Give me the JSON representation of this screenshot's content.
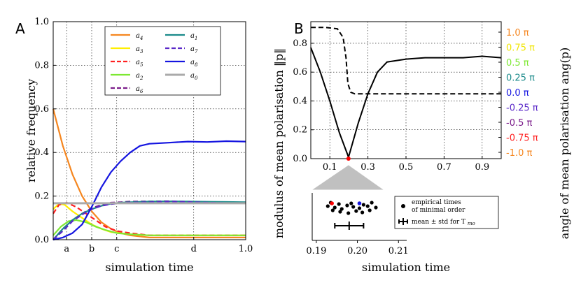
{
  "chart_data": [
    {
      "panel": "A",
      "type": "line",
      "xlabel": "simulation time",
      "ylabel": "relative frequency",
      "xlim": [
        0,
        1.0
      ],
      "ylim": [
        0,
        1.0
      ],
      "yticks": [
        "0.0",
        "0.2",
        "0.4",
        "0.6",
        "0.8",
        "1.0"
      ],
      "xticks": [
        {
          "label": "a",
          "value": 0.07
        },
        {
          "label": "b",
          "value": 0.2
        },
        {
          "label": "c",
          "value": 0.33
        },
        {
          "label": "d",
          "value": 0.73
        },
        {
          "label": "1.0",
          "value": 1.0
        }
      ],
      "legend": [
        "a4",
        "a1",
        "a3",
        "a7",
        "a5",
        "a8",
        "a2",
        "a0",
        "a6"
      ],
      "series": [
        {
          "name": "a4",
          "color": "#f5861f",
          "dash": "solid",
          "x": [
            0,
            0.05,
            0.1,
            0.15,
            0.2,
            0.25,
            0.3,
            0.35,
            0.4,
            0.5,
            0.6,
            1.0
          ],
          "y": [
            0.6,
            0.43,
            0.3,
            0.2,
            0.13,
            0.08,
            0.05,
            0.03,
            0.02,
            0.01,
            0.01,
            0.01
          ]
        },
        {
          "name": "a3",
          "color": "#ffee00",
          "dash": "solid",
          "x": [
            0,
            0.03,
            0.06,
            0.1,
            0.15,
            0.2,
            0.25,
            0.3,
            0.4,
            0.5,
            0.6,
            1.0
          ],
          "y": [
            0.14,
            0.165,
            0.16,
            0.13,
            0.1,
            0.07,
            0.05,
            0.035,
            0.025,
            0.02,
            0.02,
            0.02
          ]
        },
        {
          "name": "a5",
          "color": "#ff2020",
          "dash": "dashed",
          "x": [
            0,
            0.03,
            0.07,
            0.12,
            0.17,
            0.22,
            0.27,
            0.33,
            0.4,
            0.5,
            0.6,
            1.0
          ],
          "y": [
            0.12,
            0.16,
            0.17,
            0.15,
            0.12,
            0.09,
            0.06,
            0.04,
            0.03,
            0.02,
            0.02,
            0.02
          ]
        },
        {
          "name": "a2",
          "color": "#7de832",
          "dash": "solid",
          "x": [
            0,
            0.04,
            0.08,
            0.12,
            0.17,
            0.22,
            0.27,
            0.33,
            0.4,
            0.5,
            0.6,
            1.0
          ],
          "y": [
            0.02,
            0.06,
            0.085,
            0.09,
            0.08,
            0.06,
            0.045,
            0.03,
            0.025,
            0.02,
            0.02,
            0.02
          ]
        },
        {
          "name": "a6",
          "color": "#7b1d8a",
          "dash": "dashed",
          "x": [
            0,
            0.05,
            0.1,
            0.15,
            0.2,
            0.25,
            0.3,
            0.35,
            0.4,
            0.5,
            0.6,
            0.7,
            0.8,
            0.9,
            1.0
          ],
          "y": [
            0.0,
            0.05,
            0.09,
            0.12,
            0.145,
            0.16,
            0.17,
            0.172,
            0.175,
            0.176,
            0.177,
            0.174,
            0.172,
            0.171,
            0.17
          ]
        },
        {
          "name": "a1",
          "color": "#1a8a8a",
          "dash": "solid",
          "x": [
            0,
            0.05,
            0.1,
            0.15,
            0.2,
            0.25,
            0.3,
            0.35,
            0.4,
            0.5,
            0.6,
            0.7,
            0.8,
            0.9,
            1.0
          ],
          "y": [
            0.0,
            0.05,
            0.09,
            0.12,
            0.14,
            0.155,
            0.165,
            0.17,
            0.172,
            0.175,
            0.176,
            0.175,
            0.174,
            0.173,
            0.172
          ]
        },
        {
          "name": "a7",
          "color": "#5a28c8",
          "dash": "dashed",
          "x": [
            0,
            0.05,
            0.1,
            0.15,
            0.2,
            0.25,
            0.3,
            0.35,
            0.4,
            0.5,
            0.6,
            0.7,
            0.8,
            0.9,
            1.0
          ],
          "y": [
            0.0,
            0.04,
            0.085,
            0.115,
            0.14,
            0.155,
            0.163,
            0.168,
            0.17,
            0.172,
            0.175,
            0.173,
            0.17,
            0.168,
            0.167
          ]
        },
        {
          "name": "a8",
          "color": "#1515e0",
          "dash": "solid",
          "x": [
            0,
            0.05,
            0.1,
            0.15,
            0.2,
            0.25,
            0.3,
            0.35,
            0.4,
            0.45,
            0.5,
            0.6,
            0.7,
            0.8,
            0.9,
            1.0
          ],
          "y": [
            0.0,
            0.01,
            0.03,
            0.07,
            0.15,
            0.24,
            0.31,
            0.36,
            0.4,
            0.43,
            0.44,
            0.445,
            0.45,
            0.448,
            0.452,
            0.45
          ]
        },
        {
          "name": "a0",
          "color": "#aaaaaa",
          "dash": "solid",
          "x": [
            0,
            1.0
          ],
          "y": [
            0.167,
            0.167
          ]
        }
      ]
    },
    {
      "panel": "B",
      "type": "line",
      "xlabel": "simulation time",
      "ylabel": "modulus of mean polarisation ‖p‖",
      "ylabel_right": "angle of mean polarisation ang(p)",
      "xlim": [
        0,
        1.0
      ],
      "ylim": [
        0,
        0.95
      ],
      "xticks": [
        "0.1",
        "0.3",
        "0.5",
        "0.7",
        "0.9"
      ],
      "yticks": [
        "0.0",
        "0.2",
        "0.4",
        "0.6",
        "0.8"
      ],
      "right_ticks": [
        {
          "label": "1.0 π",
          "color": "#f5861f"
        },
        {
          "label": "0.75 π",
          "color": "#f0e500"
        },
        {
          "label": "0.5 π",
          "color": "#7de832"
        },
        {
          "label": "0.25 π",
          "color": "#1a8a8a"
        },
        {
          "label": "0.0 π",
          "color": "#1515e0"
        },
        {
          "label": "-0.25 π",
          "color": "#5a28c8"
        },
        {
          "label": "-0.5 π",
          "color": "#7b1d8a"
        },
        {
          "label": "-0.75 π",
          "color": "#ff2020"
        },
        {
          "label": "-1.0 π",
          "color": "#f5861f"
        }
      ],
      "series": [
        {
          "name": "modulus",
          "dash": "solid",
          "x": [
            0,
            0.05,
            0.1,
            0.15,
            0.198,
            0.25,
            0.3,
            0.35,
            0.4,
            0.5,
            0.6,
            0.7,
            0.8,
            0.9,
            1.0
          ],
          "y": [
            0.77,
            0.6,
            0.4,
            0.18,
            0.01,
            0.25,
            0.45,
            0.6,
            0.67,
            0.69,
            0.7,
            0.7,
            0.7,
            0.71,
            0.7
          ]
        },
        {
          "name": "angle",
          "dash": "dashed",
          "x": [
            0,
            0.08,
            0.14,
            0.17,
            0.185,
            0.195,
            0.21,
            0.23,
            0.3,
            0.5,
            0.7,
            1.0
          ],
          "y": [
            0.91,
            0.91,
            0.9,
            0.84,
            0.7,
            0.52,
            0.46,
            0.45,
            0.45,
            0.45,
            0.45,
            0.45
          ]
        }
      ],
      "min_marker": {
        "x": 0.198,
        "y": 0.0,
        "color": "#ff0000"
      }
    },
    {
      "panel": "B-inset",
      "type": "scatter",
      "xticks": [
        "0.19",
        "0.20",
        "0.21"
      ],
      "xlim": [
        0.189,
        0.212
      ],
      "points_top_row": [
        0.1935,
        0.1955,
        0.1975,
        0.1985,
        0.2015,
        0.2035
      ],
      "points_mid_row": [
        0.1928,
        0.1945,
        0.1962,
        0.199,
        0.2005,
        0.2025,
        0.2045
      ],
      "points_low_row": [
        0.194,
        0.1958,
        0.1978,
        0.1997,
        0.2012,
        0.203
      ],
      "special_points": [
        {
          "x": 0.1938,
          "color": "#ff0000"
        },
        {
          "x": 0.2005,
          "color": "#1515e0"
        }
      ],
      "errorbar": {
        "mean": 0.198,
        "std": 0.0035
      },
      "legend": [
        {
          "label_line1": "empirical times",
          "label_line2": "of minimal order"
        },
        {
          "label": "mean ± std for T",
          "sub": "mo"
        }
      ]
    }
  ],
  "labels": {
    "panel_a": "A",
    "panel_b": "B"
  }
}
